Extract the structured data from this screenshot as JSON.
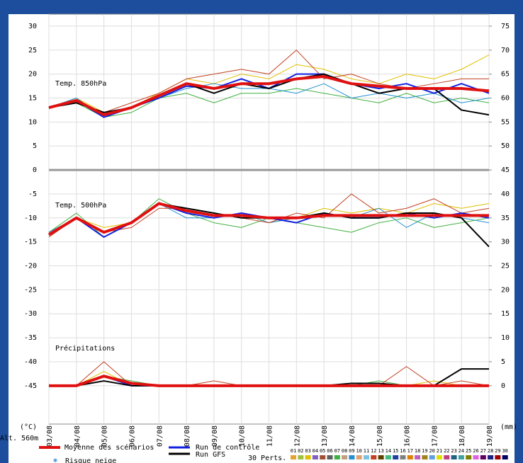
{
  "chart_data": {
    "type": "line",
    "categories": [
      "03/08",
      "04/08",
      "05/08",
      "06/08",
      "07/08",
      "08/08",
      "09/08",
      "10/08",
      "11/08",
      "12/08",
      "13/08",
      "14/08",
      "15/08",
      "16/08",
      "17/08",
      "18/08",
      "19/08"
    ],
    "ylim": [
      -53,
      32.5
    ],
    "yticks": [
      30,
      25,
      20,
      15,
      10,
      5,
      0,
      -5,
      -10,
      -15,
      -20,
      -25,
      -30,
      -35,
      -40,
      -45
    ],
    "ylabel": "(°C)",
    "y2lim": [
      -8,
      77.5
    ],
    "y2ticks": [
      75,
      70,
      65,
      60,
      55,
      50,
      45,
      40,
      35,
      30,
      25,
      20,
      15,
      10,
      5,
      0
    ],
    "y2label": "(mm)",
    "altitude": "Alt. 560m",
    "grid": true,
    "panels": [
      {
        "label": "Temp. 850hPa",
        "axis": "y"
      },
      {
        "label": "Temp. 500hPa",
        "axis": "y"
      },
      {
        "label": "Précipitations",
        "axis": "y2"
      }
    ],
    "perturbations": {
      "label": "30 Perts.",
      "members": [
        {
          "name": "01",
          "color": "#e8a030"
        },
        {
          "name": "02",
          "color": "#a0c040"
        },
        {
          "name": "03",
          "color": "#e0c000",
          "values": [
            [
              13,
              15,
              12,
              13,
              16,
              19,
              18,
              20,
              19,
              22,
              21,
              19,
              18,
              20,
              19,
              21,
              24
            ],
            [
              -13,
              -10,
              -12,
              -11,
              -7,
              -9,
              -10,
              -9,
              -11,
              -10,
              -8,
              -9,
              -8,
              -9,
              -7,
              -8,
              -7
            ],
            [
              0,
              0,
              3,
              0,
              0,
              0,
              0,
              0,
              0,
              0,
              0,
              0,
              0,
              0,
              1,
              0,
              0
            ]
          ]
        },
        {
          "name": "04",
          "color": "#8060c0"
        },
        {
          "name": "05",
          "color": "#a05030"
        },
        {
          "name": "06",
          "color": "#606060"
        },
        {
          "name": "07",
          "color": "#40b040",
          "values": [
            [
              13,
              14,
              11,
              12,
              15,
              16,
              14,
              16,
              16,
              17,
              16,
              15,
              14,
              16,
              14,
              15,
              14
            ],
            [
              -13,
              -9,
              -14,
              -11,
              -6,
              -9,
              -11,
              -12,
              -10,
              -11,
              -12,
              -13,
              -11,
              -10,
              -12,
              -11,
              -10
            ],
            [
              0,
              0,
              2,
              1,
              0,
              0,
              0,
              0,
              0,
              0,
              0,
              0,
              1,
              0,
              0,
              0,
              0
            ]
          ]
        },
        {
          "name": "08",
          "color": "#c0a080"
        },
        {
          "name": "09",
          "color": "#2090d0",
          "values": [
            [
              13,
              15,
              11,
              13,
              15,
              17,
              18,
              17,
              17,
              16,
              18,
              15,
              16,
              15,
              16,
              14,
              15
            ],
            [
              -13,
              -10,
              -13,
              -11,
              -7,
              -10,
              -10,
              -9,
              -11,
              -10,
              -9,
              -10,
              -8,
              -12,
              -9,
              -10,
              -11
            ],
            [
              0,
              0,
              1,
              0,
              0,
              0,
              0,
              0,
              0,
              0,
              0,
              0,
              0,
              0,
              0,
              0,
              0
            ]
          ]
        },
        {
          "name": "10",
          "color": "#e0a070"
        },
        {
          "name": "11",
          "color": "#80c0e0"
        },
        {
          "name": "12",
          "color": "#c04020",
          "values": [
            [
              13,
              14,
              12,
              14,
              16,
              19,
              20,
              21,
              20,
              25,
              19,
              20,
              18,
              17,
              18,
              19,
              19
            ],
            [
              -14,
              -10,
              -13,
              -12,
              -8,
              -8,
              -9,
              -10,
              -11,
              -9,
              -10,
              -5,
              -9,
              -8,
              -6,
              -9,
              -8
            ],
            [
              0,
              0,
              5,
              0,
              0,
              0,
              1,
              0,
              0,
              0,
              0,
              0,
              0,
              4,
              0,
              1,
              0
            ]
          ]
        },
        {
          "name": "13",
          "color": "#604000"
        },
        {
          "name": "14",
          "color": "#40c080"
        },
        {
          "name": "15",
          "color": "#2040a0"
        },
        {
          "name": "16",
          "color": "#808080"
        },
        {
          "name": "17",
          "color": "#e08000"
        },
        {
          "name": "18",
          "color": "#c060c0"
        },
        {
          "name": "19",
          "color": "#a08020"
        },
        {
          "name": "20",
          "color": "#60a0e0"
        },
        {
          "name": "21",
          "color": "#e0e000"
        },
        {
          "name": "22",
          "color": "#c04080"
        },
        {
          "name": "23",
          "color": "#206080"
        },
        {
          "name": "24",
          "color": "#40a0a0"
        },
        {
          "name": "25",
          "color": "#808000"
        },
        {
          "name": "26",
          "color": "#e060e0"
        },
        {
          "name": "27",
          "color": "#600060"
        },
        {
          "name": "28",
          "color": "#202080"
        },
        {
          "name": "29",
          "color": "#a00000"
        },
        {
          "name": "30",
          "color": "#000060"
        }
      ]
    },
    "series": [
      {
        "name": "Run de contrôle",
        "color": "#1020e0",
        "values": [
          [
            13,
            14.5,
            11,
            13,
            15,
            17.5,
            17,
            19,
            17,
            20,
            20,
            18,
            17,
            18,
            16,
            18,
            16
          ],
          [
            -13.5,
            -10,
            -14,
            -11,
            -7,
            -9,
            -10,
            -9,
            -10,
            -11,
            -9,
            -10,
            -10,
            -9,
            -10,
            -9,
            -10
          ],
          [
            0,
            0,
            2,
            0,
            0,
            0,
            0,
            0,
            0,
            0,
            0,
            0,
            0,
            0,
            0,
            0,
            0
          ]
        ]
      },
      {
        "name": "Run GFS",
        "color": "#000000",
        "values": [
          [
            13,
            14,
            12,
            13,
            15.5,
            18,
            16,
            18,
            17,
            19,
            20,
            18,
            16,
            17,
            17,
            12.5,
            11.5
          ],
          [
            -13.5,
            -10,
            -13,
            -11,
            -7,
            -8,
            -9,
            -10,
            -10,
            -10,
            -9,
            -10,
            -10,
            -9,
            -9,
            -10,
            -16
          ],
          [
            0,
            0,
            1,
            0,
            0,
            0,
            0,
            0,
            0,
            0,
            0,
            0.5,
            0.5,
            0,
            0,
            3.5,
            3.5
          ]
        ]
      },
      {
        "name": "Moyenne des scénarios",
        "color": "#e01010",
        "values": [
          [
            13,
            14.5,
            11.5,
            13,
            15.5,
            18,
            17,
            18,
            18,
            19,
            19.5,
            18,
            17.5,
            17,
            17,
            17,
            16.5
          ],
          [
            -13.5,
            -10,
            -13,
            -11,
            -7,
            -8.5,
            -9.5,
            -9.5,
            -10,
            -10,
            -9.5,
            -9.5,
            -9.5,
            -9.5,
            -9.5,
            -9.5,
            -9.5
          ],
          [
            0,
            0,
            2,
            0.5,
            0,
            0,
            0,
            0,
            0,
            0,
            0,
            0,
            0,
            0,
            0,
            0,
            0
          ]
        ]
      }
    ],
    "snow_risk": "Risque neige"
  }
}
